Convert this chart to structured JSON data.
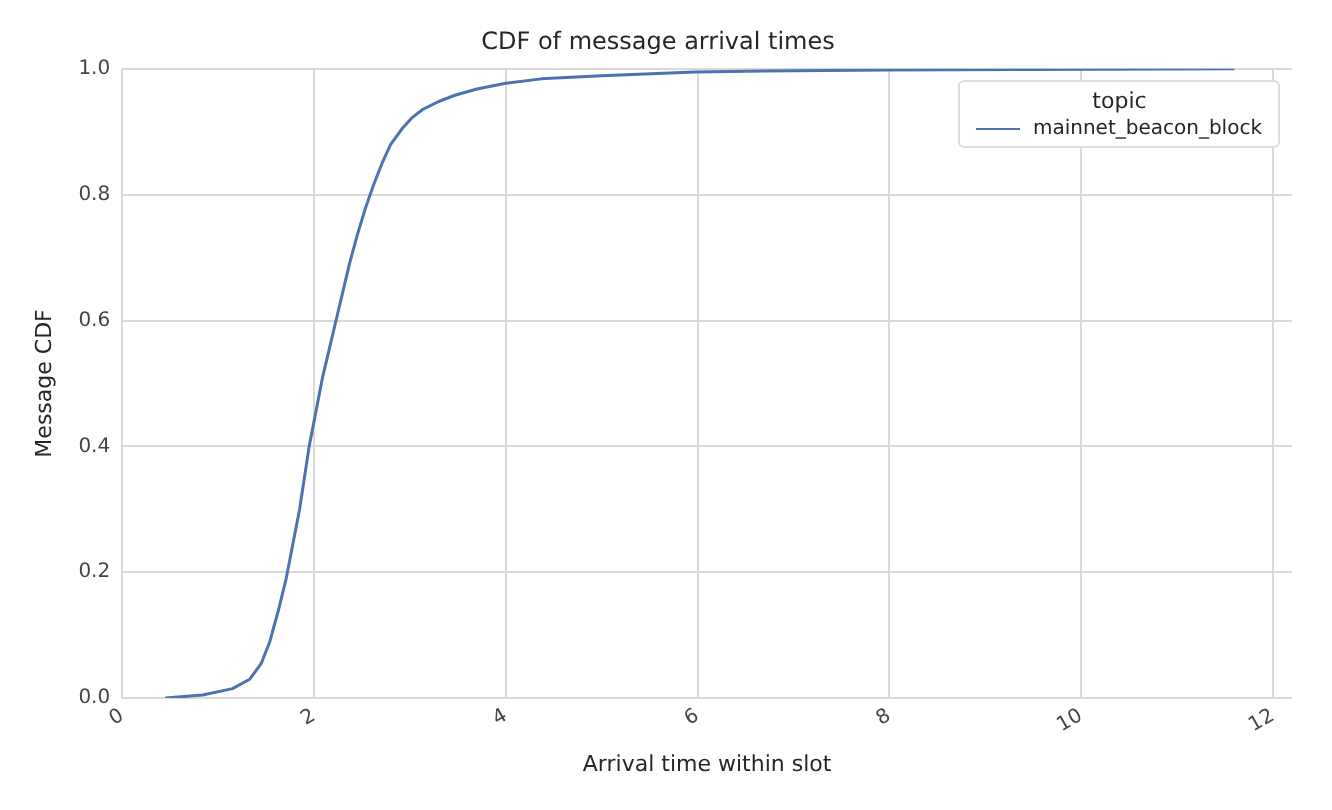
{
  "chart_data": {
    "type": "line",
    "title": "CDF of message arrival times",
    "xlabel": "Arrival time within slot",
    "ylabel": "Message CDF",
    "legend_title": "topic",
    "series": [
      {
        "name": "mainnet_beacon_block",
        "color": "#4c72b0",
        "x": [
          0.45,
          0.84,
          1.15,
          1.33,
          1.45,
          1.54,
          1.63,
          1.71,
          1.78,
          1.85,
          1.95,
          2.02,
          2.09,
          2.16,
          2.23,
          2.3,
          2.37,
          2.45,
          2.54,
          2.62,
          2.71,
          2.8,
          2.92,
          3.02,
          3.13,
          3.3,
          3.47,
          3.7,
          4.0,
          4.37,
          5.0,
          5.97,
          7.0,
          8.0,
          9.5,
          11.6
        ],
        "values": [
          0,
          0.005,
          0.015,
          0.03,
          0.055,
          0.09,
          0.14,
          0.19,
          0.245,
          0.3,
          0.4,
          0.455,
          0.51,
          0.555,
          0.6,
          0.645,
          0.69,
          0.735,
          0.78,
          0.815,
          0.85,
          0.88,
          0.905,
          0.922,
          0.935,
          0.948,
          0.958,
          0.968,
          0.977,
          0.984,
          0.989,
          0.995,
          0.997,
          0.998,
          0.999,
          1.0
        ]
      }
    ],
    "xlim": [
      0,
      12.2
    ],
    "xticks": [
      0,
      2,
      4,
      6,
      8,
      10,
      12
    ],
    "ylim": [
      0,
      1
    ],
    "yticks": [
      {
        "value": 0,
        "label": "0.0"
      },
      {
        "value": 0.2,
        "label": "0.2"
      },
      {
        "value": 0.4,
        "label": "0.4"
      },
      {
        "value": 0.6,
        "label": "0.6"
      },
      {
        "value": 0.8,
        "label": "0.8"
      },
      {
        "value": 1,
        "label": "1.0"
      }
    ],
    "grid": true,
    "legend": "top right",
    "marker": "none",
    "line_style": "solid"
  }
}
